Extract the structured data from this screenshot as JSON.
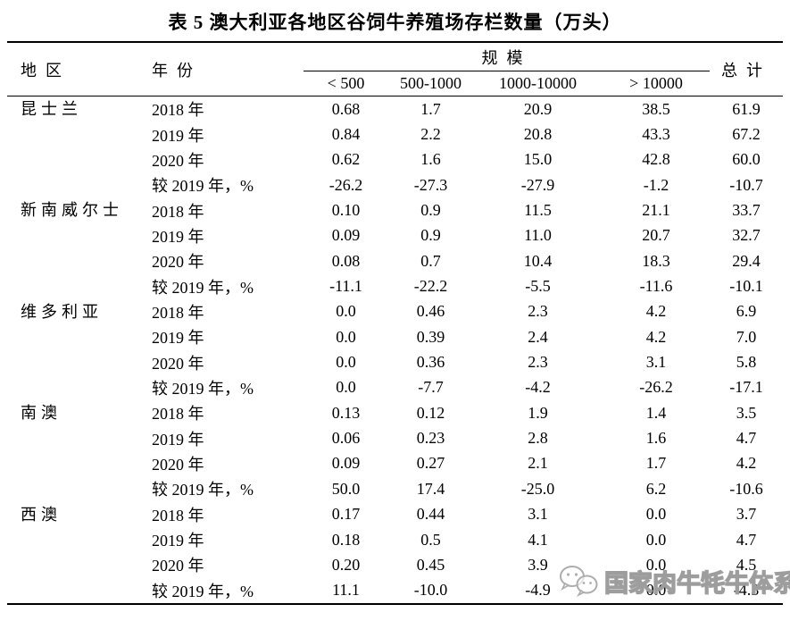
{
  "title": "表 5 澳大利亚各地区谷饲牛养殖场存栏数量（万头）",
  "columns": {
    "region": "地区",
    "year": "年份",
    "scale": "规模",
    "total": "总计",
    "sub": [
      "< 500",
      "500-1000",
      "1000-10000",
      "> 10000"
    ]
  },
  "table": {
    "groups": [
      {
        "region": "昆士兰",
        "rows": [
          {
            "label": "2018 年",
            "values": [
              "0.68",
              "1.7",
              "20.9",
              "38.5",
              "61.9"
            ]
          },
          {
            "label": "2019 年",
            "values": [
              "0.84",
              "2.2",
              "20.8",
              "43.3",
              "67.2"
            ]
          },
          {
            "label": "2020 年",
            "values": [
              "0.62",
              "1.6",
              "15.0",
              "42.8",
              "60.0"
            ]
          },
          {
            "label": "较 2019 年，%",
            "values": [
              "-26.2",
              "-27.3",
              "-27.9",
              "-1.2",
              "-10.7"
            ]
          }
        ]
      },
      {
        "region": "新南威尔士",
        "rows": [
          {
            "label": "2018 年",
            "values": [
              "0.10",
              "0.9",
              "11.5",
              "21.1",
              "33.7"
            ]
          },
          {
            "label": "2019 年",
            "values": [
              "0.09",
              "0.9",
              "11.0",
              "20.7",
              "32.7"
            ]
          },
          {
            "label": "2020 年",
            "values": [
              "0.08",
              "0.7",
              "10.4",
              "18.3",
              "29.4"
            ]
          },
          {
            "label": "较 2019 年，%",
            "values": [
              "-11.1",
              "-22.2",
              "-5.5",
              "-11.6",
              "-10.1"
            ]
          }
        ]
      },
      {
        "region": "维多利亚",
        "rows": [
          {
            "label": "2018 年",
            "values": [
              "0.0",
              "0.46",
              "2.3",
              "4.2",
              "6.9"
            ]
          },
          {
            "label": "2019 年",
            "values": [
              "0.0",
              "0.39",
              "2.4",
              "4.2",
              "7.0"
            ]
          },
          {
            "label": "2020 年",
            "values": [
              "0.0",
              "0.36",
              "2.3",
              "3.1",
              "5.8"
            ]
          },
          {
            "label": "较 2019 年，%",
            "values": [
              "0.0",
              "-7.7",
              "-4.2",
              "-26.2",
              "-17.1"
            ]
          }
        ]
      },
      {
        "region": "南澳",
        "rows": [
          {
            "label": "2018 年",
            "values": [
              "0.13",
              "0.12",
              "1.9",
              "1.4",
              "3.5"
            ]
          },
          {
            "label": "2019 年",
            "values": [
              "0.06",
              "0.23",
              "2.8",
              "1.6",
              "4.7"
            ]
          },
          {
            "label": "2020 年",
            "values": [
              "0.09",
              "0.27",
              "2.1",
              "1.7",
              "4.2"
            ]
          },
          {
            "label": "较 2019 年，%",
            "values": [
              "50.0",
              "17.4",
              "-25.0",
              "6.2",
              "-10.6"
            ]
          }
        ]
      },
      {
        "region": "西澳",
        "rows": [
          {
            "label": "2018 年",
            "values": [
              "0.17",
              "0.44",
              "3.1",
              "0.0",
              "3.7"
            ]
          },
          {
            "label": "2019 年",
            "values": [
              "0.18",
              "0.5",
              "4.1",
              "0.0",
              "4.7"
            ]
          },
          {
            "label": "2020 年",
            "values": [
              "0.20",
              "0.45",
              "3.9",
              "0.0",
              "4.5"
            ]
          },
          {
            "label": "较 2019 年，%",
            "values": [
              "11.1",
              "-10.0",
              "-4.9",
              "0.0",
              "-4.3"
            ]
          }
        ]
      }
    ]
  },
  "watermark": {
    "icon": "wechat-icon",
    "text": "国家肉牛牦牛体系",
    "color": "#9d9d9d"
  },
  "colors": {
    "text": "#000000",
    "rule": "#000000",
    "background": "#ffffff"
  }
}
